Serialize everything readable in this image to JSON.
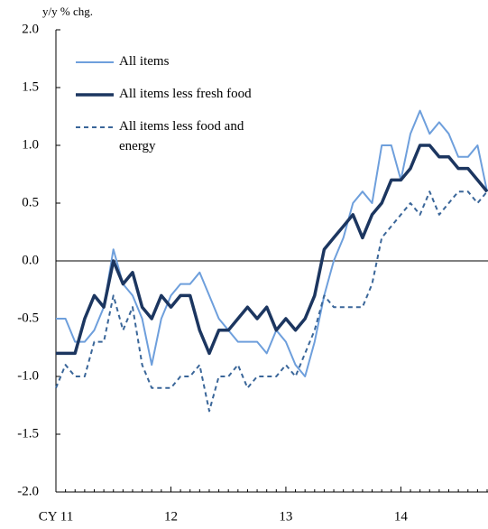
{
  "chart_data": {
    "type": "line",
    "y_label": "y/y % chg.",
    "x": [
      "CY 11",
      null,
      null,
      null,
      null,
      null,
      null,
      null,
      null,
      null,
      null,
      null,
      "12",
      null,
      null,
      null,
      null,
      null,
      null,
      null,
      null,
      null,
      null,
      null,
      "13",
      null,
      null,
      null,
      null,
      null,
      null,
      null,
      null,
      null,
      null,
      null,
      "14",
      null,
      null,
      null,
      null,
      null,
      null,
      null,
      null,
      null
    ],
    "series": [
      {
        "name": "All items",
        "color": "#6e9fdc",
        "width": 2,
        "dash": false,
        "values": [
          -0.5,
          -0.5,
          -0.7,
          -0.7,
          -0.6,
          -0.4,
          0.1,
          -0.2,
          -0.3,
          -0.5,
          -0.9,
          -0.5,
          -0.3,
          -0.2,
          -0.2,
          -0.1,
          -0.3,
          -0.5,
          -0.6,
          -0.7,
          -0.7,
          -0.7,
          -0.8,
          -0.6,
          -0.7,
          -0.9,
          -1.0,
          -0.7,
          -0.3,
          0.0,
          0.2,
          0.5,
          0.6,
          0.5,
          1.0,
          1.0,
          0.7,
          1.1,
          1.3,
          1.1,
          1.2,
          1.1,
          0.9,
          0.9,
          1.0,
          0.6
        ]
      },
      {
        "name": "All items less fresh food",
        "color": "#1c3660",
        "width": 3.5,
        "dash": false,
        "values": [
          -0.8,
          -0.8,
          -0.8,
          -0.5,
          -0.3,
          -0.4,
          0.0,
          -0.2,
          -0.1,
          -0.4,
          -0.5,
          -0.3,
          -0.4,
          -0.3,
          -0.3,
          -0.6,
          -0.8,
          -0.6,
          -0.6,
          -0.5,
          -0.4,
          -0.5,
          -0.4,
          -0.6,
          -0.5,
          -0.6,
          -0.5,
          -0.3,
          0.1,
          0.2,
          0.3,
          0.4,
          0.2,
          0.4,
          0.5,
          0.7,
          0.7,
          0.8,
          1.0,
          1.0,
          0.9,
          0.9,
          0.8,
          0.8,
          0.7,
          0.6
        ]
      },
      {
        "name": "All items less food and energy",
        "color": "#3a6699",
        "width": 2,
        "dash": true,
        "values": [
          -1.1,
          -0.9,
          -1.0,
          -1.0,
          -0.7,
          -0.7,
          -0.3,
          -0.6,
          -0.4,
          -0.9,
          -1.1,
          -1.1,
          -1.1,
          -1.0,
          -1.0,
          -0.9,
          -1.3,
          -1.0,
          -1.0,
          -0.9,
          -1.1,
          -1.0,
          -1.0,
          -1.0,
          -0.9,
          -1.0,
          -0.8,
          -0.6,
          -0.3,
          -0.4,
          -0.4,
          -0.4,
          -0.4,
          -0.2,
          0.2,
          0.3,
          0.4,
          0.5,
          0.4,
          0.6,
          0.4,
          0.5,
          0.6,
          0.6,
          0.5,
          0.6
        ]
      }
    ],
    "ylim": [
      -2,
      2
    ],
    "yticks": [
      {
        "value": -2,
        "label": "-2.0"
      },
      {
        "value": -1.5,
        "label": "-1.5"
      },
      {
        "value": -1,
        "label": "-1.0"
      },
      {
        "value": -0.5,
        "label": "-0.5"
      },
      {
        "value": 0,
        "label": "0.0"
      },
      {
        "value": 0.5,
        "label": "0.5"
      },
      {
        "value": 1,
        "label": "1.0"
      },
      {
        "value": 1.5,
        "label": "1.5"
      },
      {
        "value": 2,
        "label": "2.0"
      }
    ],
    "zero_line": true,
    "grid": false,
    "legend": "upper left"
  }
}
